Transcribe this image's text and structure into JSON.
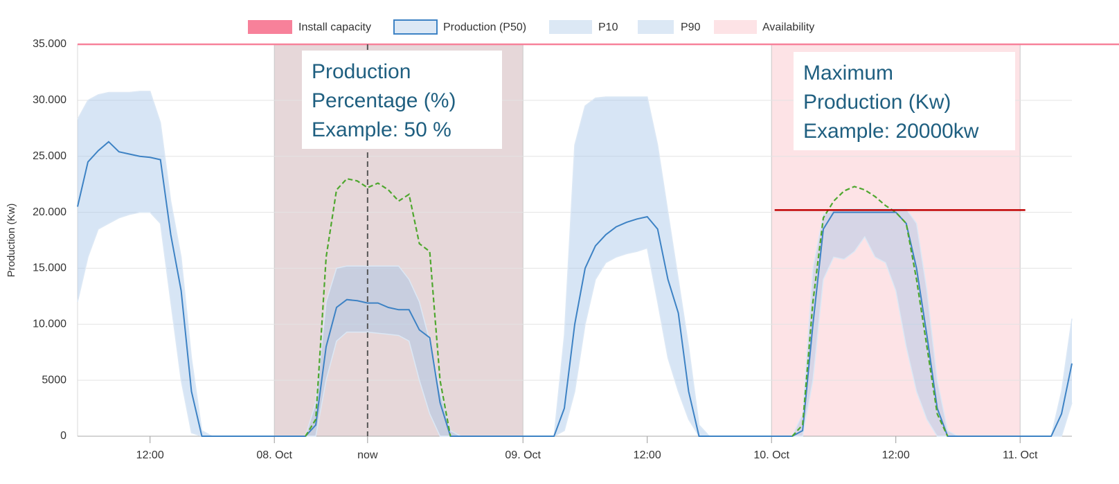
{
  "chart_data": {
    "type": "line",
    "y_label": "Production (Kw)",
    "xlim": [
      5,
      101
    ],
    "ylim": [
      0,
      35000
    ],
    "xticks": [
      {
        "value": 12,
        "label": "12:00"
      },
      {
        "value": 24,
        "label": "08. Oct"
      },
      {
        "value": 33,
        "label": "now"
      },
      {
        "value": 48,
        "label": "09. Oct"
      },
      {
        "value": 60,
        "label": "12:00"
      },
      {
        "value": 72,
        "label": "10. Oct"
      },
      {
        "value": 84,
        "label": "12:00"
      },
      {
        "value": 96,
        "label": "11. Oct"
      }
    ],
    "yticks": [
      0,
      5000,
      {
        "value": 10000,
        "label": "10.000"
      },
      {
        "value": 15000,
        "label": "15.000"
      },
      {
        "value": 20000,
        "label": "20.000"
      },
      {
        "value": 25000,
        "label": "25.000"
      },
      {
        "value": 30000,
        "label": "30.000"
      },
      {
        "value": 35000,
        "label": "35.000"
      }
    ],
    "grid": true,
    "x": [
      5,
      6,
      7,
      8,
      9,
      10,
      11,
      12,
      13,
      14,
      15,
      16,
      17,
      18,
      19,
      20,
      21,
      22,
      23,
      24,
      25,
      26,
      27,
      28,
      29,
      30,
      31,
      32,
      33,
      34,
      35,
      36,
      37,
      38,
      39,
      40,
      41,
      42,
      43,
      44,
      45,
      46,
      47,
      48,
      49,
      50,
      51,
      52,
      53,
      54,
      55,
      56,
      57,
      58,
      59,
      60,
      61,
      62,
      63,
      64,
      65,
      66,
      67,
      68,
      69,
      70,
      71,
      72,
      73,
      74,
      75,
      76,
      77,
      78,
      79,
      80,
      81,
      82,
      83,
      84,
      85,
      86,
      87,
      88,
      89,
      90,
      91,
      92,
      93,
      94,
      95,
      96,
      97,
      98,
      99,
      100,
      101
    ],
    "capacity": {
      "name": "Install capacity",
      "value": 35000,
      "color": "#f7819a"
    },
    "series": [
      {
        "name": "Production (P50)",
        "color": "#3d82c4",
        "values": [
          20500,
          24500,
          25500,
          26300,
          25400,
          25200,
          25000,
          24900,
          24700,
          18000,
          13000,
          4000,
          0,
          0,
          0,
          0,
          0,
          0,
          0,
          0,
          0,
          0,
          0,
          1000,
          8000,
          11500,
          12200,
          12100,
          11900,
          11900,
          11500,
          11300,
          11300,
          9500,
          8800,
          3000,
          0,
          0,
          0,
          0,
          0,
          0,
          0,
          0,
          0,
          0,
          0,
          2500,
          10000,
          15000,
          17000,
          18000,
          18700,
          19100,
          19400,
          19600,
          18500,
          14000,
          11000,
          4000,
          0,
          0,
          0,
          0,
          0,
          0,
          0,
          0,
          0,
          0,
          500,
          10000,
          18500,
          20000,
          20000,
          20000,
          20000,
          20000,
          20000,
          20000,
          19000,
          15000,
          9000,
          2500,
          0,
          0,
          0,
          0,
          0,
          0,
          0,
          0,
          0,
          0,
          0,
          2000,
          6500
        ]
      },
      {
        "name": "P10",
        "color": "#dce8f5",
        "values": [
          28300,
          30000,
          30500,
          30700,
          30700,
          30700,
          30800,
          30800,
          28000,
          21000,
          16000,
          7000,
          500,
          0,
          0,
          0,
          0,
          0,
          0,
          0,
          0,
          0,
          0,
          3000,
          12000,
          15000,
          15200,
          15200,
          15200,
          15200,
          15200,
          15200,
          14000,
          12000,
          8500,
          4000,
          500,
          0,
          0,
          0,
          0,
          0,
          0,
          0,
          0,
          0,
          0,
          9000,
          26000,
          29500,
          30200,
          30300,
          30300,
          30300,
          30300,
          30300,
          26000,
          20000,
          14000,
          8000,
          1000,
          0,
          0,
          0,
          0,
          0,
          0,
          0,
          0,
          0,
          2000,
          15000,
          19800,
          20200,
          20300,
          20300,
          20300,
          20300,
          20300,
          20300,
          20300,
          19000,
          13000,
          5000,
          500,
          0,
          0,
          0,
          0,
          0,
          0,
          0,
          0,
          0,
          0,
          4000,
          10500
        ]
      },
      {
        "name": "P90",
        "color": "#dce8f5",
        "values": [
          12000,
          16000,
          18500,
          19000,
          19500,
          19800,
          20000,
          20000,
          19000,
          12000,
          5000,
          300,
          0,
          0,
          0,
          0,
          0,
          0,
          0,
          0,
          0,
          0,
          0,
          0,
          5000,
          8500,
          9300,
          9300,
          9300,
          9200,
          9100,
          9000,
          8500,
          5000,
          2000,
          0,
          0,
          0,
          0,
          0,
          0,
          0,
          0,
          0,
          0,
          0,
          0,
          500,
          4000,
          10000,
          14000,
          15500,
          16000,
          16300,
          16500,
          16800,
          12000,
          7000,
          4000,
          1500,
          0,
          0,
          0,
          0,
          0,
          0,
          0,
          0,
          0,
          0,
          0,
          5000,
          14000,
          16000,
          15800,
          16500,
          17800,
          16000,
          15500,
          13000,
          8000,
          4000,
          1500,
          0,
          0,
          0,
          0,
          0,
          0,
          0,
          0,
          0,
          0,
          0,
          0,
          0,
          3000
        ]
      }
    ],
    "dashed_line": {
      "color": "#4ea72e",
      "values": [
        null,
        null,
        null,
        null,
        null,
        null,
        null,
        null,
        null,
        null,
        null,
        null,
        null,
        null,
        null,
        null,
        null,
        null,
        null,
        null,
        null,
        null,
        0,
        1500,
        16000,
        22000,
        23000,
        22800,
        22200,
        22600,
        22000,
        21000,
        21600,
        17200,
        16500,
        5000,
        0,
        null,
        null,
        null,
        null,
        null,
        null,
        null,
        null,
        null,
        null,
        null,
        null,
        null,
        null,
        null,
        null,
        null,
        null,
        null,
        null,
        null,
        null,
        null,
        null,
        null,
        null,
        null,
        null,
        null,
        null,
        null,
        null,
        0,
        1000,
        12000,
        19500,
        21000,
        21900,
        22300,
        22000,
        21400,
        20600,
        20000,
        19000,
        14000,
        8000,
        2000,
        0,
        null,
        null,
        null,
        null,
        null,
        null,
        null,
        null,
        null,
        null,
        null,
        null
      ]
    },
    "availability": {
      "name": "Availability",
      "color": "#fde3e6",
      "bands": [
        {
          "from": 24,
          "to": 48,
          "color": "#e6d7d9"
        },
        {
          "from": 72,
          "to": 96,
          "color": "#fde3e6"
        }
      ]
    },
    "max_line": {
      "value": 20200,
      "from": 72.3,
      "to": 96.5,
      "color": "#c00000"
    },
    "annotations": [
      {
        "lines": [
          "Production",
          "Percentage (%)",
          "Example: 50 %"
        ]
      },
      {
        "lines": [
          "Maximum",
          "Production (Kw)",
          "Example: 20000kw"
        ]
      }
    ]
  }
}
